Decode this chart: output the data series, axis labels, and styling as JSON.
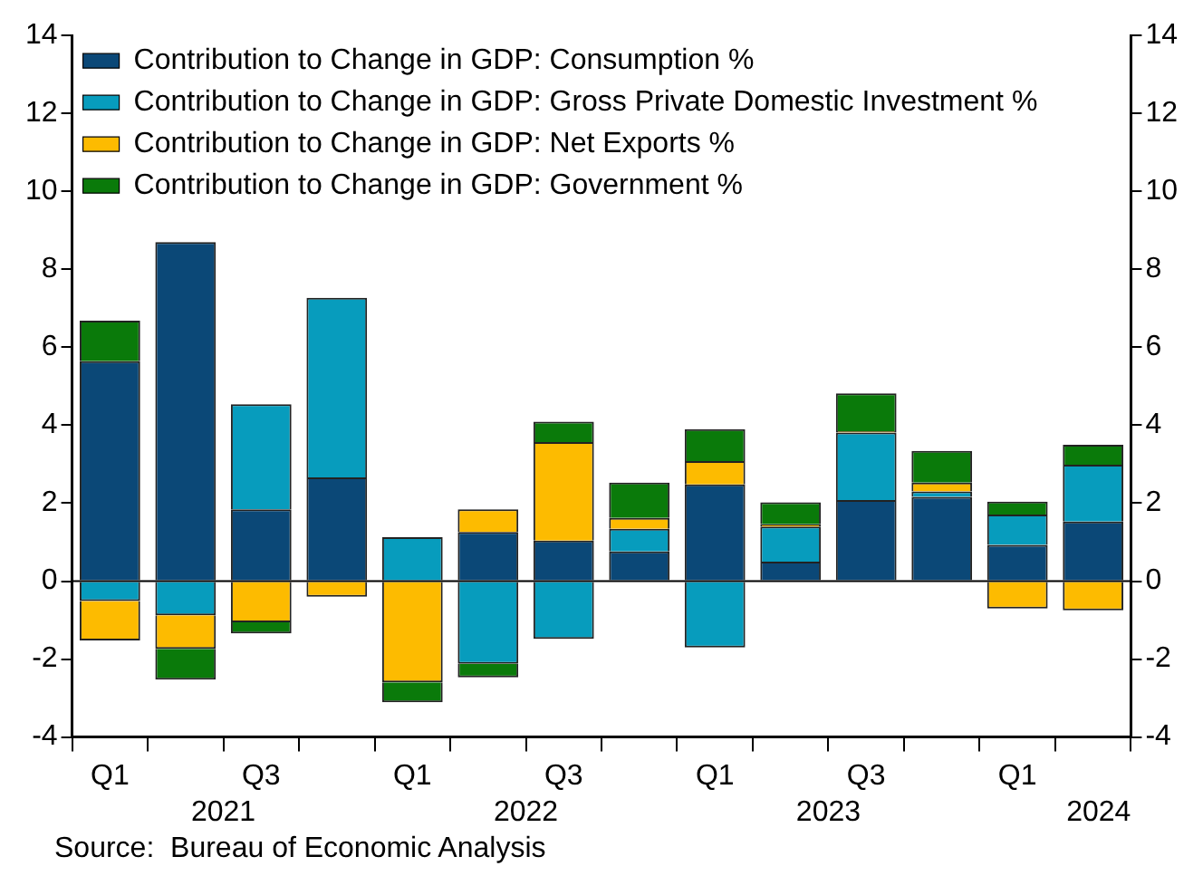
{
  "chart_data": {
    "type": "bar",
    "stacked": true,
    "categories": [
      "Q1",
      null,
      "Q3",
      null,
      "Q1",
      null,
      "Q3",
      null,
      "Q1",
      null,
      "Q3",
      null,
      "Q1",
      null
    ],
    "series": [
      {
        "name": "Contribution to Change in GDP: Consumption %",
        "color": "#0b4877",
        "values": [
          5.64,
          8.7,
          1.84,
          2.66,
          null,
          1.26,
          1.04,
          0.76,
          2.48,
          0.5,
          2.08,
          2.16,
          0.93,
          1.53
        ]
      },
      {
        "name": "Contribution to Change in GDP: Gross Private Domestic Investment %",
        "color": "#079cbd",
        "values": [
          -0.51,
          -0.88,
          2.7,
          4.61,
          1.13,
          -2.12,
          -1.48,
          0.58,
          -1.7,
          0.9,
          1.73,
          0.14,
          0.78,
          1.46
        ]
      },
      {
        "name": "Contribution to Change in GDP: Net Exports %",
        "color": "#fdbb00",
        "values": [
          -1.01,
          -0.86,
          -1.06,
          -0.4,
          -2.6,
          0.58,
          2.53,
          0.28,
          0.6,
          0.06,
          0.04,
          0.23,
          -0.7,
          -0.75
        ]
      },
      {
        "name": "Contribution to Change in GDP: Government %",
        "color": "#0a7a0a",
        "values": [
          1.04,
          -0.79,
          -0.28,
          0,
          -0.51,
          -0.35,
          0.52,
          0.91,
          0.82,
          0.56,
          0.97,
          0.81,
          0.33,
          0.51
        ]
      }
    ],
    "ylim": [
      -4,
      14
    ],
    "yticks": [
      -4,
      -2,
      0,
      2,
      4,
      6,
      8,
      10,
      12,
      14
    ],
    "y2lim": [
      -4,
      14
    ],
    "y2ticks": [
      -4,
      -2,
      0,
      2,
      4,
      6,
      8,
      10,
      12,
      14
    ],
    "ref_lines": [
      {
        "axis": "y",
        "value": 0,
        "color": "#000000"
      }
    ],
    "legend": "top left",
    "grid": false,
    "annotations": [
      "2021",
      "2022",
      "2023",
      "2024",
      "Source:  Bureau of Economic Analysis"
    ]
  }
}
